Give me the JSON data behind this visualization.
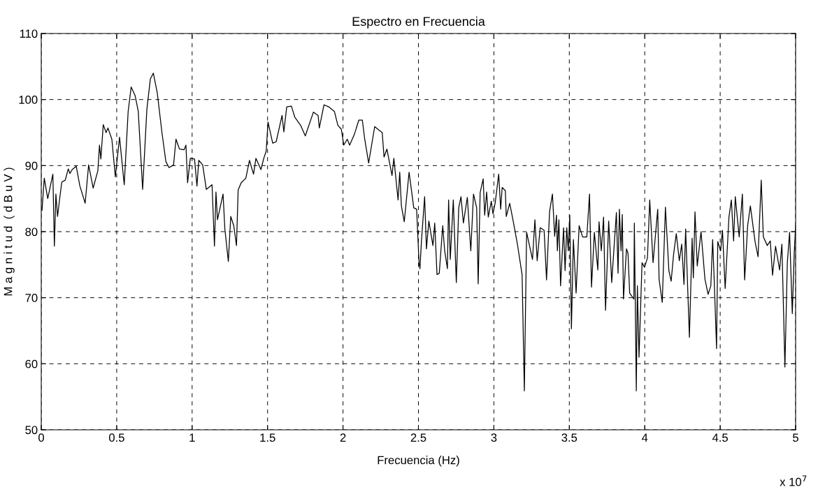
{
  "chart_data": {
    "type": "line",
    "title": "Espectro en Frecuencia",
    "xlabel": "Frecuencia (Hz)",
    "ylabel": "M a g n i t u d  ( d B u V )",
    "annotations": [
      "x 10$^{7}$"
    ],
    "xlim": [
      0,
      5
    ],
    "xticks": [
      0,
      0.5,
      1,
      1.5,
      2,
      2.5,
      3,
      3.5,
      4,
      4.5,
      5
    ],
    "ylim": [
      50,
      110
    ],
    "yticks": [
      50,
      60,
      70,
      80,
      90,
      100,
      110
    ],
    "grid": true,
    "legend": false,
    "marker": "none",
    "line_style": "solid",
    "series": [
      {
        "color": "#000000",
        "x": [
          0.005,
          0.02,
          0.043,
          0.077,
          0.087,
          0.097,
          0.108,
          0.12,
          0.136,
          0.159,
          0.179,
          0.19,
          0.205,
          0.232,
          0.256,
          0.275,
          0.291,
          0.314,
          0.344,
          0.375,
          0.386,
          0.395,
          0.411,
          0.43,
          0.442,
          0.468,
          0.491,
          0.519,
          0.55,
          0.576,
          0.596,
          0.622,
          0.643,
          0.672,
          0.7,
          0.723,
          0.743,
          0.769,
          0.8,
          0.826,
          0.847,
          0.877,
          0.893,
          0.916,
          0.947,
          0.959,
          0.97,
          0.988,
          1.016,
          1.032,
          1.044,
          1.07,
          1.094,
          1.132,
          1.148,
          1.158,
          1.168,
          1.205,
          1.217,
          1.24,
          1.256,
          1.276,
          1.294,
          1.305,
          1.325,
          1.356,
          1.38,
          1.407,
          1.423,
          1.456,
          1.475,
          1.491,
          1.503,
          1.534,
          1.557,
          1.596,
          1.608,
          1.627,
          1.658,
          1.681,
          1.719,
          1.75,
          1.804,
          1.835,
          1.843,
          1.874,
          1.905,
          1.943,
          1.966,
          1.989,
          2.005,
          2.028,
          2.044,
          2.075,
          2.105,
          2.128,
          2.144,
          2.17,
          2.21,
          2.237,
          2.26,
          2.272,
          2.291,
          2.325,
          2.337,
          2.365,
          2.376,
          2.387,
          2.406,
          2.438,
          2.469,
          2.488,
          2.504,
          2.51,
          2.52,
          2.541,
          2.553,
          2.569,
          2.596,
          2.608,
          2.623,
          2.638,
          2.661,
          2.674,
          2.692,
          2.7,
          2.711,
          2.731,
          2.751,
          2.767,
          2.782,
          2.798,
          2.824,
          2.847,
          2.865,
          2.886,
          2.896,
          2.909,
          2.929,
          2.939,
          2.952,
          2.963,
          2.983,
          2.994,
          3.009,
          3.032,
          3.045,
          3.055,
          3.076,
          3.082,
          3.105,
          3.128,
          3.156,
          3.187,
          3.202,
          3.217,
          3.256,
          3.272,
          3.287,
          3.307,
          3.333,
          3.349,
          3.369,
          3.388,
          3.403,
          3.415,
          3.421,
          3.431,
          3.442,
          3.462,
          3.472,
          3.483,
          3.493,
          3.503,
          3.514,
          3.527,
          3.545,
          3.565,
          3.588,
          3.616,
          3.634,
          3.647,
          3.666,
          3.689,
          3.697,
          3.712,
          3.727,
          3.74,
          3.761,
          3.781,
          3.812,
          3.823,
          3.832,
          3.843,
          3.851,
          3.859,
          3.879,
          3.889,
          3.9,
          3.928,
          3.931,
          3.944,
          3.951,
          3.962,
          3.982,
          3.998,
          4.018,
          4.033,
          4.055,
          4.086,
          4.095,
          4.116,
          4.137,
          4.16,
          4.175,
          4.191,
          4.209,
          4.229,
          4.245,
          4.26,
          4.271,
          4.296,
          4.314,
          4.322,
          4.333,
          4.348,
          4.373,
          4.399,
          4.42,
          4.438,
          4.45,
          4.461,
          4.476,
          4.484,
          4.503,
          4.515,
          4.533,
          4.558,
          4.574,
          4.589,
          4.6,
          4.626,
          4.647,
          4.662,
          4.682,
          4.7,
          4.731,
          4.751,
          4.772,
          4.786,
          4.812,
          4.832,
          4.847,
          4.867,
          4.894,
          4.909,
          4.929,
          4.945,
          4.96,
          4.978,
          4.991,
          5.0
        ],
        "values": [
          83.2,
          88.1,
          85.0,
          88.7,
          77.8,
          85.7,
          82.3,
          84.6,
          87.5,
          87.8,
          89.5,
          88.8,
          89.4,
          89.9,
          86.9,
          85.5,
          84.3,
          90.1,
          86.6,
          89.2,
          93.1,
          91.0,
          96.2,
          95.0,
          95.7,
          94.0,
          88.3,
          94.3,
          87.1,
          98.2,
          101.9,
          100.6,
          98.2,
          86.4,
          98.5,
          103.1,
          104.0,
          101.0,
          95.0,
          90.6,
          89.7,
          90.1,
          94.0,
          92.5,
          92.4,
          93.1,
          87.4,
          91.1,
          91.0,
          86.9,
          90.8,
          90.1,
          86.4,
          87.1,
          77.8,
          86.0,
          81.8,
          85.7,
          80.4,
          75.5,
          82.3,
          80.9,
          77.9,
          86.3,
          87.4,
          88.1,
          90.8,
          88.7,
          91.1,
          89.4,
          91.1,
          92.2,
          96.6,
          93.4,
          93.6,
          97.6,
          95.1,
          98.9,
          99.0,
          97.3,
          96.1,
          94.5,
          98.1,
          97.6,
          95.7,
          99.2,
          98.9,
          98.2,
          96.1,
          95.5,
          93.1,
          94.0,
          93.1,
          94.7,
          96.9,
          96.9,
          94.0,
          90.4,
          95.9,
          95.4,
          95.0,
          91.3,
          92.5,
          88.5,
          91.1,
          84.8,
          89.0,
          83.9,
          81.5,
          89.0,
          83.6,
          83.4,
          75.3,
          74.4,
          78.6,
          85.3,
          77.4,
          81.6,
          77.9,
          81.3,
          73.5,
          73.7,
          80.9,
          77.1,
          74.4,
          84.8,
          75.8,
          84.8,
          72.3,
          83.6,
          85.3,
          81.3,
          85.2,
          77.1,
          85.7,
          83.6,
          72.1,
          85.9,
          88.0,
          82.5,
          86.0,
          82.2,
          84.6,
          82.7,
          84.4,
          88.7,
          83.4,
          86.7,
          86.2,
          82.3,
          84.3,
          81.6,
          78.1,
          73.5,
          55.9,
          79.9,
          75.8,
          81.8,
          75.6,
          80.6,
          80.2,
          72.7,
          83.0,
          85.7,
          79.3,
          82.5,
          77.1,
          81.8,
          71.8,
          80.6,
          74.1,
          80.6,
          77.1,
          82.5,
          65.3,
          78.8,
          70.7,
          80.9,
          79.2,
          79.2,
          85.7,
          71.6,
          79.9,
          74.2,
          81.5,
          77.1,
          82.2,
          68.1,
          81.6,
          72.3,
          82.9,
          73.7,
          83.4,
          77.1,
          82.6,
          69.8,
          77.4,
          76.7,
          70.7,
          69.8,
          81.3,
          55.9,
          71.8,
          61.0,
          75.3,
          74.6,
          76.0,
          84.8,
          75.3,
          83.4,
          72.8,
          69.3,
          83.7,
          74.1,
          72.5,
          76.5,
          79.7,
          75.6,
          78.1,
          72.0,
          80.4,
          64.0,
          79.0,
          73.0,
          83.0,
          74.8,
          80.0,
          72.8,
          70.5,
          71.8,
          78.8,
          72.3,
          62.3,
          78.5,
          77.1,
          80.2,
          71.4,
          82.2,
          84.8,
          78.6,
          85.3,
          79.2,
          85.7,
          72.7,
          80.9,
          83.9,
          78.5,
          76.2,
          87.8,
          79.2,
          77.9,
          78.6,
          73.4,
          77.8,
          74.2,
          78.1,
          59.5,
          75.3,
          79.9,
          67.6,
          76.9,
          80.9
        ]
      }
    ]
  }
}
